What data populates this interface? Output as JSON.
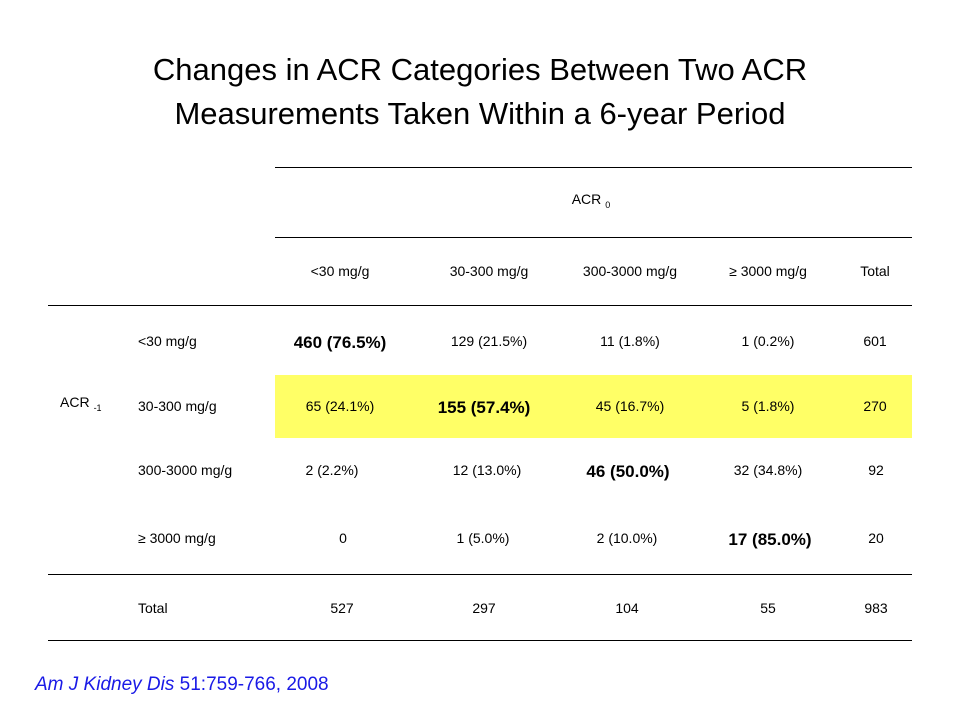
{
  "title": {
    "line1": "Changes in ACR Categories Between Two ACR",
    "line2": "Measurements Taken Within a 6-year Period"
  },
  "table": {
    "col_group_label": "ACR",
    "col_group_sub": "0",
    "row_group_label": "ACR",
    "row_group_sub": "-1",
    "columns": [
      "<30 mg/g",
      "30-300 mg/g",
      "300-3000 mg/g",
      "≥ 3000 mg/g",
      "Total"
    ],
    "rows": [
      {
        "label": "<30 mg/g",
        "cells": [
          "460 (76.5%)",
          "129 (21.5%)",
          "11 (1.8%)",
          "1 (0.2%)",
          "601"
        ]
      },
      {
        "label": "30-300 mg/g",
        "cells": [
          "65 (24.1%)",
          "155 (57.4%)",
          "45 (16.7%)",
          "5 (1.8%)",
          "270"
        ]
      },
      {
        "label": "300-3000 mg/g",
        "cells": [
          "2 (2.2%)",
          "12 (13.0%)",
          "46 (50.0%)",
          "32 (34.8%)",
          "92"
        ]
      },
      {
        "label": "≥ 3000 mg/g",
        "cells": [
          "0",
          "1 (5.0%)",
          "2 (10.0%)",
          "17 (85.0%)",
          "20"
        ]
      }
    ],
    "total_row": {
      "label": "Total",
      "cells": [
        "527",
        "297",
        "104",
        "55",
        "983"
      ]
    },
    "highlight_color": "#ffff66"
  },
  "citation": {
    "journal": "Am J Kidney Dis",
    "details": " 51:759-766, 2008",
    "color": "#1a1ae6"
  }
}
